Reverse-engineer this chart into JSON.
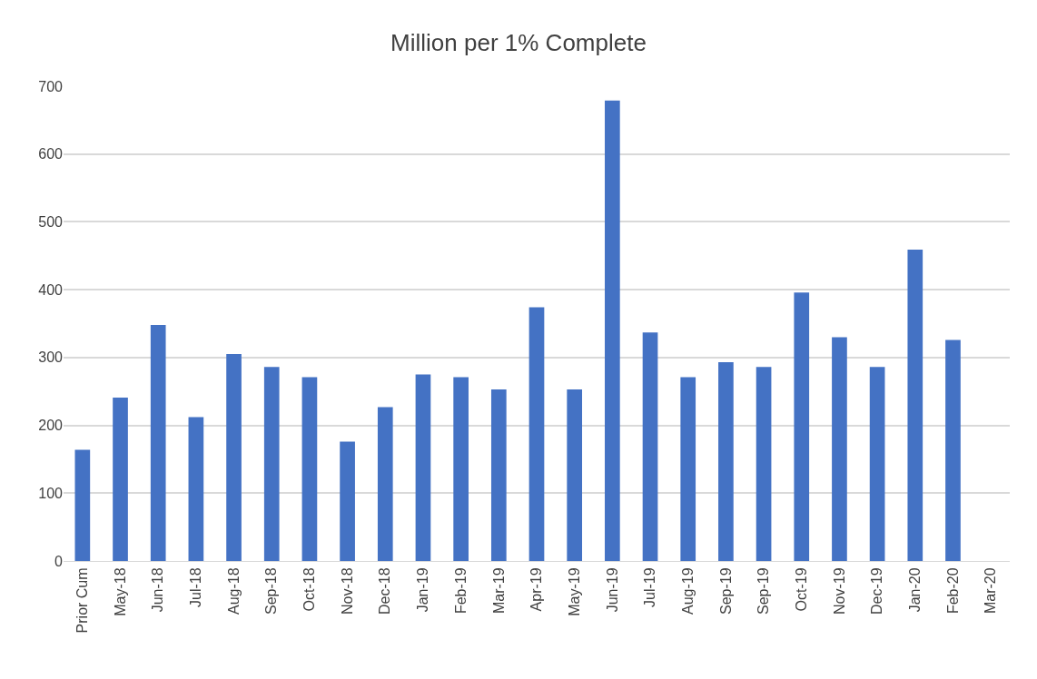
{
  "chart_data": {
    "type": "bar",
    "title": "Million per 1% Complete",
    "categories": [
      "Prior Cum",
      "May-18",
      "Jun-18",
      "Jul-18",
      "Aug-18",
      "Sep-18",
      "Oct-18",
      "Nov-18",
      "Dec-18",
      "Jan-19",
      "Feb-19",
      "Mar-19",
      "Apr-19",
      "May-19",
      "Jun-19",
      "Jul-19",
      "Aug-19",
      "Sep-19",
      "Sep-19",
      "Oct-19",
      "Nov-19",
      "Dec-19",
      "Jan-20",
      "Feb-20",
      "Mar-20"
    ],
    "values": [
      164,
      241,
      348,
      212,
      305,
      286,
      271,
      176,
      227,
      275,
      271,
      253,
      374,
      253,
      679,
      337,
      271,
      293,
      286,
      396,
      330,
      286,
      459,
      326,
      null
    ],
    "color": "#4472c4",
    "ylim": [
      0,
      700
    ],
    "yticks": [
      0,
      100,
      200,
      300,
      400,
      500,
      600,
      700
    ],
    "grid": "y"
  }
}
